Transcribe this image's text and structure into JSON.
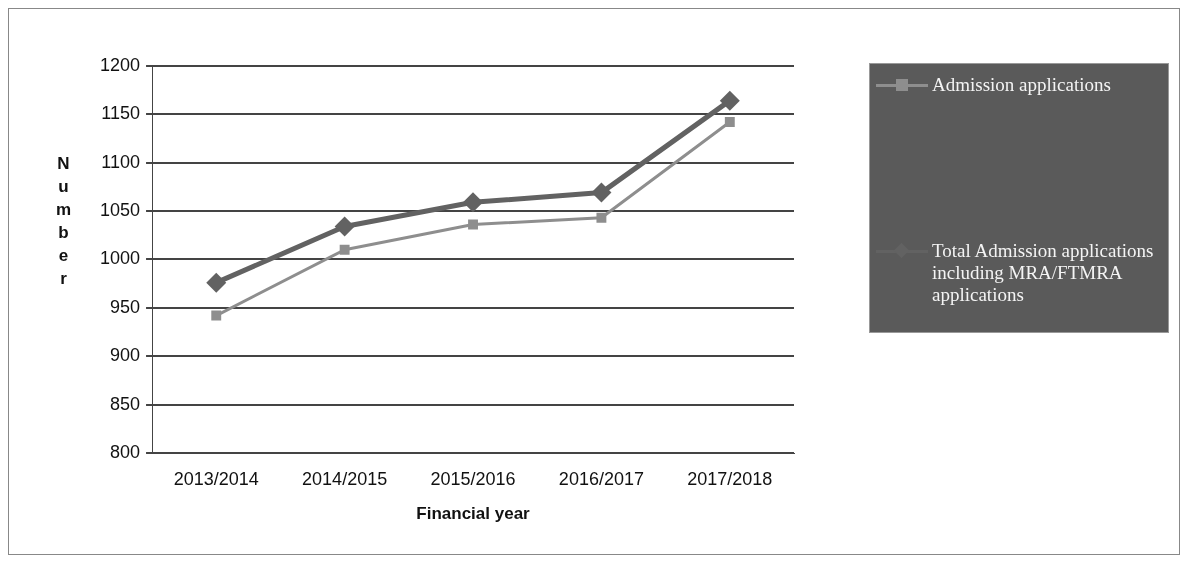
{
  "chart_data": {
    "type": "line",
    "xlabel": "Financial year",
    "ylabel": "Number",
    "categories": [
      "2013/2014",
      "2014/2015",
      "2015/2016",
      "2016/2017",
      "2017/2018"
    ],
    "series": [
      {
        "name": "Admission applications",
        "color": "#8e8e8e",
        "marker": "square",
        "values": [
          942,
          1010,
          1036,
          1043,
          1142
        ]
      },
      {
        "name": "Total Admission applications including MRA/FTMRA applications",
        "color": "#626262",
        "marker": "diamond",
        "values": [
          976,
          1034,
          1059,
          1069,
          1164
        ]
      }
    ],
    "ylim": [
      800,
      1200
    ],
    "yticks": [
      800,
      850,
      900,
      950,
      1000,
      1050,
      1100,
      1150,
      1200
    ],
    "grid": "y",
    "legend": "right"
  }
}
